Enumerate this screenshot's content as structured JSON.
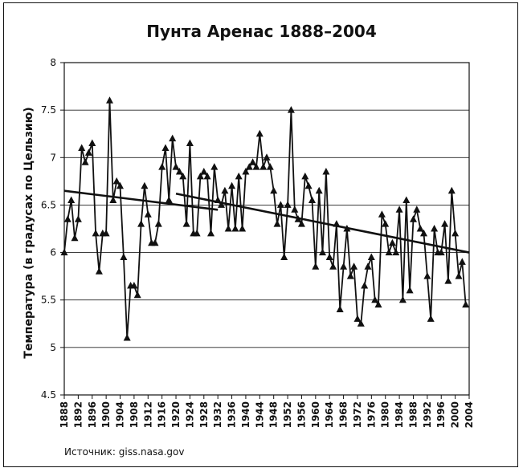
{
  "chart_data": {
    "type": "line",
    "title": "Пунта Аренас 1888–2004",
    "ylabel": "Температура (в градусах по Цельзию)",
    "xlabel": "",
    "ylim": [
      4.5,
      8
    ],
    "xlim": [
      1888,
      2004
    ],
    "yticks": [
      "4.5",
      "5",
      "5.5",
      "6",
      "6.5",
      "7",
      "7.5",
      "8"
    ],
    "xticks": [
      "1888",
      "1892",
      "1896",
      "1900",
      "1904",
      "1908",
      "1912",
      "1916",
      "1920",
      "1924",
      "1928",
      "1932",
      "1936",
      "1940",
      "1944",
      "1948",
      "1952",
      "1956",
      "1960",
      "1964",
      "1968",
      "1972",
      "1976",
      "1980",
      "1984",
      "1988",
      "1992",
      "1996",
      "2000",
      "2004"
    ],
    "grid": "horizontal",
    "marker": "triangle",
    "series": [
      {
        "x": [
          1888,
          1889,
          1890,
          1891,
          1892,
          1893,
          1894,
          1895,
          1896,
          1897,
          1898,
          1899,
          1900,
          1901,
          1902,
          1903,
          1904,
          1905,
          1906,
          1907,
          1908,
          1909,
          1910,
          1911,
          1912,
          1913,
          1914,
          1915,
          1916,
          1917,
          1918,
          1919,
          1920,
          1921,
          1922,
          1923,
          1924,
          1925,
          1926,
          1927,
          1928,
          1929,
          1930,
          1931,
          1932,
          1933,
          1934,
          1935,
          1936,
          1937,
          1938,
          1939,
          1940,
          1941,
          1942,
          1943,
          1944,
          1945,
          1946,
          1947,
          1948,
          1949,
          1950,
          1951,
          1952,
          1953,
          1954,
          1955,
          1956,
          1957,
          1958,
          1959,
          1960,
          1961,
          1962,
          1963,
          1964,
          1965,
          1966,
          1967,
          1968,
          1969,
          1970,
          1971,
          1972,
          1973,
          1974,
          1975,
          1976,
          1977,
          1978,
          1979,
          1980,
          1981,
          1982,
          1983,
          1984,
          1985,
          1986,
          1987,
          1988,
          1989,
          1990,
          1991,
          1992,
          1993,
          1994,
          1995,
          1996,
          1997,
          1998,
          1999,
          2000,
          2001,
          2002,
          2003
        ],
        "values": [
          6.0,
          6.35,
          6.55,
          6.15,
          6.35,
          7.1,
          6.95,
          7.05,
          7.15,
          6.2,
          5.8,
          6.2,
          6.2,
          7.6,
          6.55,
          6.75,
          6.7,
          5.95,
          5.1,
          5.65,
          5.65,
          5.55,
          6.3,
          6.7,
          6.4,
          6.1,
          6.1,
          6.3,
          6.9,
          7.1,
          6.55,
          7.2,
          6.9,
          6.85,
          6.8,
          6.3,
          7.15,
          6.2,
          6.2,
          6.8,
          6.85,
          6.8,
          6.2,
          6.9,
          6.55,
          6.5,
          6.65,
          6.25,
          6.7,
          6.25,
          6.8,
          6.25,
          6.85,
          6.9,
          6.95,
          6.9,
          7.25,
          6.9,
          7.0,
          6.9,
          6.65,
          6.3,
          6.5,
          5.95,
          6.5,
          7.5,
          6.45,
          6.35,
          6.3,
          6.8,
          6.7,
          6.55,
          5.85,
          6.65,
          6.0,
          6.85,
          5.95,
          5.85,
          6.3,
          5.4,
          5.85,
          6.25,
          5.75,
          5.85,
          5.3,
          5.25,
          5.65,
          5.85,
          5.95,
          5.5,
          5.45,
          6.4,
          6.3,
          6.0,
          6.1,
          6.0,
          6.45,
          5.5,
          6.55,
          5.6,
          6.35,
          6.45,
          6.25,
          6.2,
          5.75,
          5.3,
          6.25,
          6.0,
          6.0,
          6.3,
          5.7,
          6.65,
          6.2,
          5.75,
          5.9,
          5.45
        ]
      }
    ],
    "trendlines": [
      {
        "x": [
          1888,
          1932
        ],
        "values": [
          6.65,
          6.45
        ]
      },
      {
        "x": [
          1920,
          2004
        ],
        "values": [
          6.62,
          6.0
        ]
      }
    ],
    "source": "Источник: giss.nasa.gov"
  }
}
